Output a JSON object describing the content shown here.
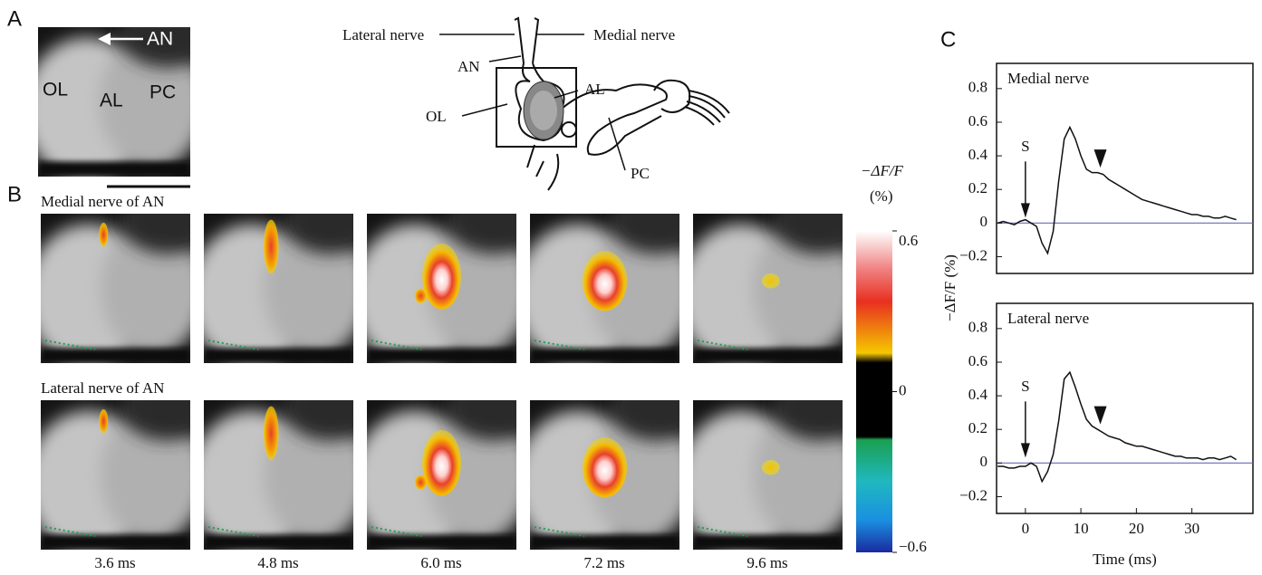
{
  "panel_a": {
    "label": "A",
    "image_labels": [
      "AN",
      "OL",
      "AL",
      "PC"
    ],
    "diagram_labels": [
      "Lateral nerve",
      "Medial nerve",
      "AN",
      "OL",
      "AL",
      "PC"
    ]
  },
  "panel_b": {
    "label": "B",
    "rows": [
      "Medial nerve of AN",
      "Lateral nerve of AN"
    ],
    "times": [
      "3.6 ms",
      "4.8 ms",
      "6.0 ms",
      "7.2 ms",
      "9.6 ms"
    ],
    "colorbar": {
      "title": "−ΔF/F",
      "unit": "(%)",
      "lim": [
        -0.6,
        0.6
      ],
      "ticks": [
        0.6,
        0,
        {
          "value": -0.6,
          "label": "−0.6"
        }
      ]
    }
  },
  "panel_c_label": "C",
  "chart_data": [
    {
      "type": "line",
      "title": "Medial nerve",
      "ylabel": "−ΔF/F (%)",
      "color": "#111111",
      "baseline_color": "#6a6ab8",
      "x": [
        -5,
        -4,
        -3,
        -2,
        -1,
        0,
        1,
        2,
        3,
        4,
        5,
        6,
        7,
        8,
        9,
        10,
        11,
        12,
        13,
        14,
        15,
        16,
        17,
        18,
        19,
        20,
        21,
        22,
        23,
        24,
        25,
        26,
        27,
        28,
        29,
        30,
        31,
        32,
        33,
        34,
        35,
        36,
        37,
        38
      ],
      "values": [
        0,
        0.01,
        0,
        -0.01,
        0.01,
        0.02,
        0,
        -0.02,
        -0.12,
        -0.18,
        -0.05,
        0.25,
        0.5,
        0.57,
        0.5,
        0.4,
        0.32,
        0.3,
        0.3,
        0.29,
        0.26,
        0.24,
        0.22,
        0.2,
        0.18,
        0.16,
        0.14,
        0.13,
        0.12,
        0.11,
        0.1,
        0.09,
        0.08,
        0.07,
        0.06,
        0.05,
        0.05,
        0.04,
        0.04,
        0.03,
        0.03,
        0.04,
        0.03,
        0.02
      ],
      "xlim": [
        -5.2,
        41
      ],
      "ylim": [
        -0.3,
        0.95
      ],
      "yticks": [
        {
          "value": -0.2,
          "label": "−0.2"
        },
        0,
        0.2,
        0.4,
        0.6,
        0.8
      ],
      "annotations": [
        {
          "text": "S",
          "x": 0
        }
      ],
      "markers": [
        {
          "x": 13.5,
          "y": 0.33
        }
      ]
    },
    {
      "type": "line",
      "title": "Lateral nerve",
      "xlabel": "Time (ms)",
      "color": "#111111",
      "baseline_color": "#6a6ab8",
      "x": [
        -5,
        -4,
        -3,
        -2,
        -1,
        0,
        1,
        2,
        3,
        4,
        5,
        6,
        7,
        8,
        9,
        10,
        11,
        12,
        13,
        14,
        15,
        16,
        17,
        18,
        19,
        20,
        21,
        22,
        23,
        24,
        25,
        26,
        27,
        28,
        29,
        30,
        31,
        32,
        33,
        34,
        35,
        36,
        37,
        38
      ],
      "values": [
        -0.02,
        -0.02,
        -0.03,
        -0.03,
        -0.02,
        -0.02,
        0,
        -0.02,
        -0.11,
        -0.05,
        0.05,
        0.25,
        0.5,
        0.54,
        0.45,
        0.35,
        0.26,
        0.22,
        0.2,
        0.18,
        0.16,
        0.15,
        0.14,
        0.12,
        0.11,
        0.1,
        0.1,
        0.09,
        0.08,
        0.07,
        0.06,
        0.05,
        0.04,
        0.04,
        0.03,
        0.03,
        0.03,
        0.02,
        0.03,
        0.03,
        0.02,
        0.03,
        0.04,
        0.02
      ],
      "xlim": [
        -5.2,
        41
      ],
      "ylim": [
        -0.3,
        0.95
      ],
      "xticks": [
        0,
        10,
        20,
        30
      ],
      "yticks": [
        {
          "value": -0.2,
          "label": "−0.2"
        },
        0,
        0.2,
        0.4,
        0.6,
        0.8
      ],
      "annotations": [
        {
          "text": "S",
          "x": 0
        }
      ],
      "markers": [
        {
          "x": 13.5,
          "y": 0.23
        }
      ]
    }
  ]
}
